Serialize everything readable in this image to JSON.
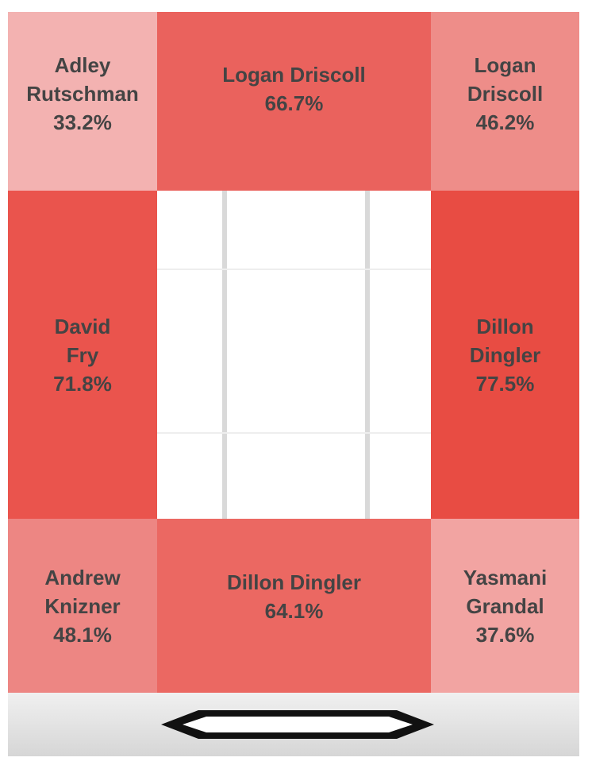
{
  "chart_data": {
    "type": "heatmap",
    "value_unit": "%",
    "zones": [
      {
        "zone": "up-left",
        "player_lines": [
          "Adley",
          "Rutschman"
        ],
        "value": 33.2,
        "value_label": "33.2%",
        "color": "#f3b2b1"
      },
      {
        "zone": "up-middle",
        "player_lines": [
          "Logan Driscoll"
        ],
        "value": 66.7,
        "value_label": "66.7%",
        "color": "#ea625d"
      },
      {
        "zone": "up-right",
        "player_lines": [
          "Logan",
          "Driscoll"
        ],
        "value": 46.2,
        "value_label": "46.2%",
        "color": "#ee8d89"
      },
      {
        "zone": "middle-left",
        "player_lines": [
          "David",
          "Fry"
        ],
        "value": 71.8,
        "value_label": "71.8%",
        "color": "#ea544d"
      },
      {
        "zone": "middle-right",
        "player_lines": [
          "Dillon",
          "Dingler"
        ],
        "value": 77.5,
        "value_label": "77.5%",
        "color": "#e84c43"
      },
      {
        "zone": "down-left",
        "player_lines": [
          "Andrew",
          "Knizner"
        ],
        "value": 48.1,
        "value_label": "48.1%",
        "color": "#ed8683"
      },
      {
        "zone": "down-middle",
        "player_lines": [
          "Dillon Dingler"
        ],
        "value": 64.1,
        "value_label": "64.1%",
        "color": "#eb6862"
      },
      {
        "zone": "down-right",
        "player_lines": [
          "Yasmani",
          "Grandal"
        ],
        "value": 37.6,
        "value_label": "37.6%",
        "color": "#f2a4a2"
      }
    ]
  },
  "decor": {
    "plate_icon": "home-plate-icon"
  }
}
